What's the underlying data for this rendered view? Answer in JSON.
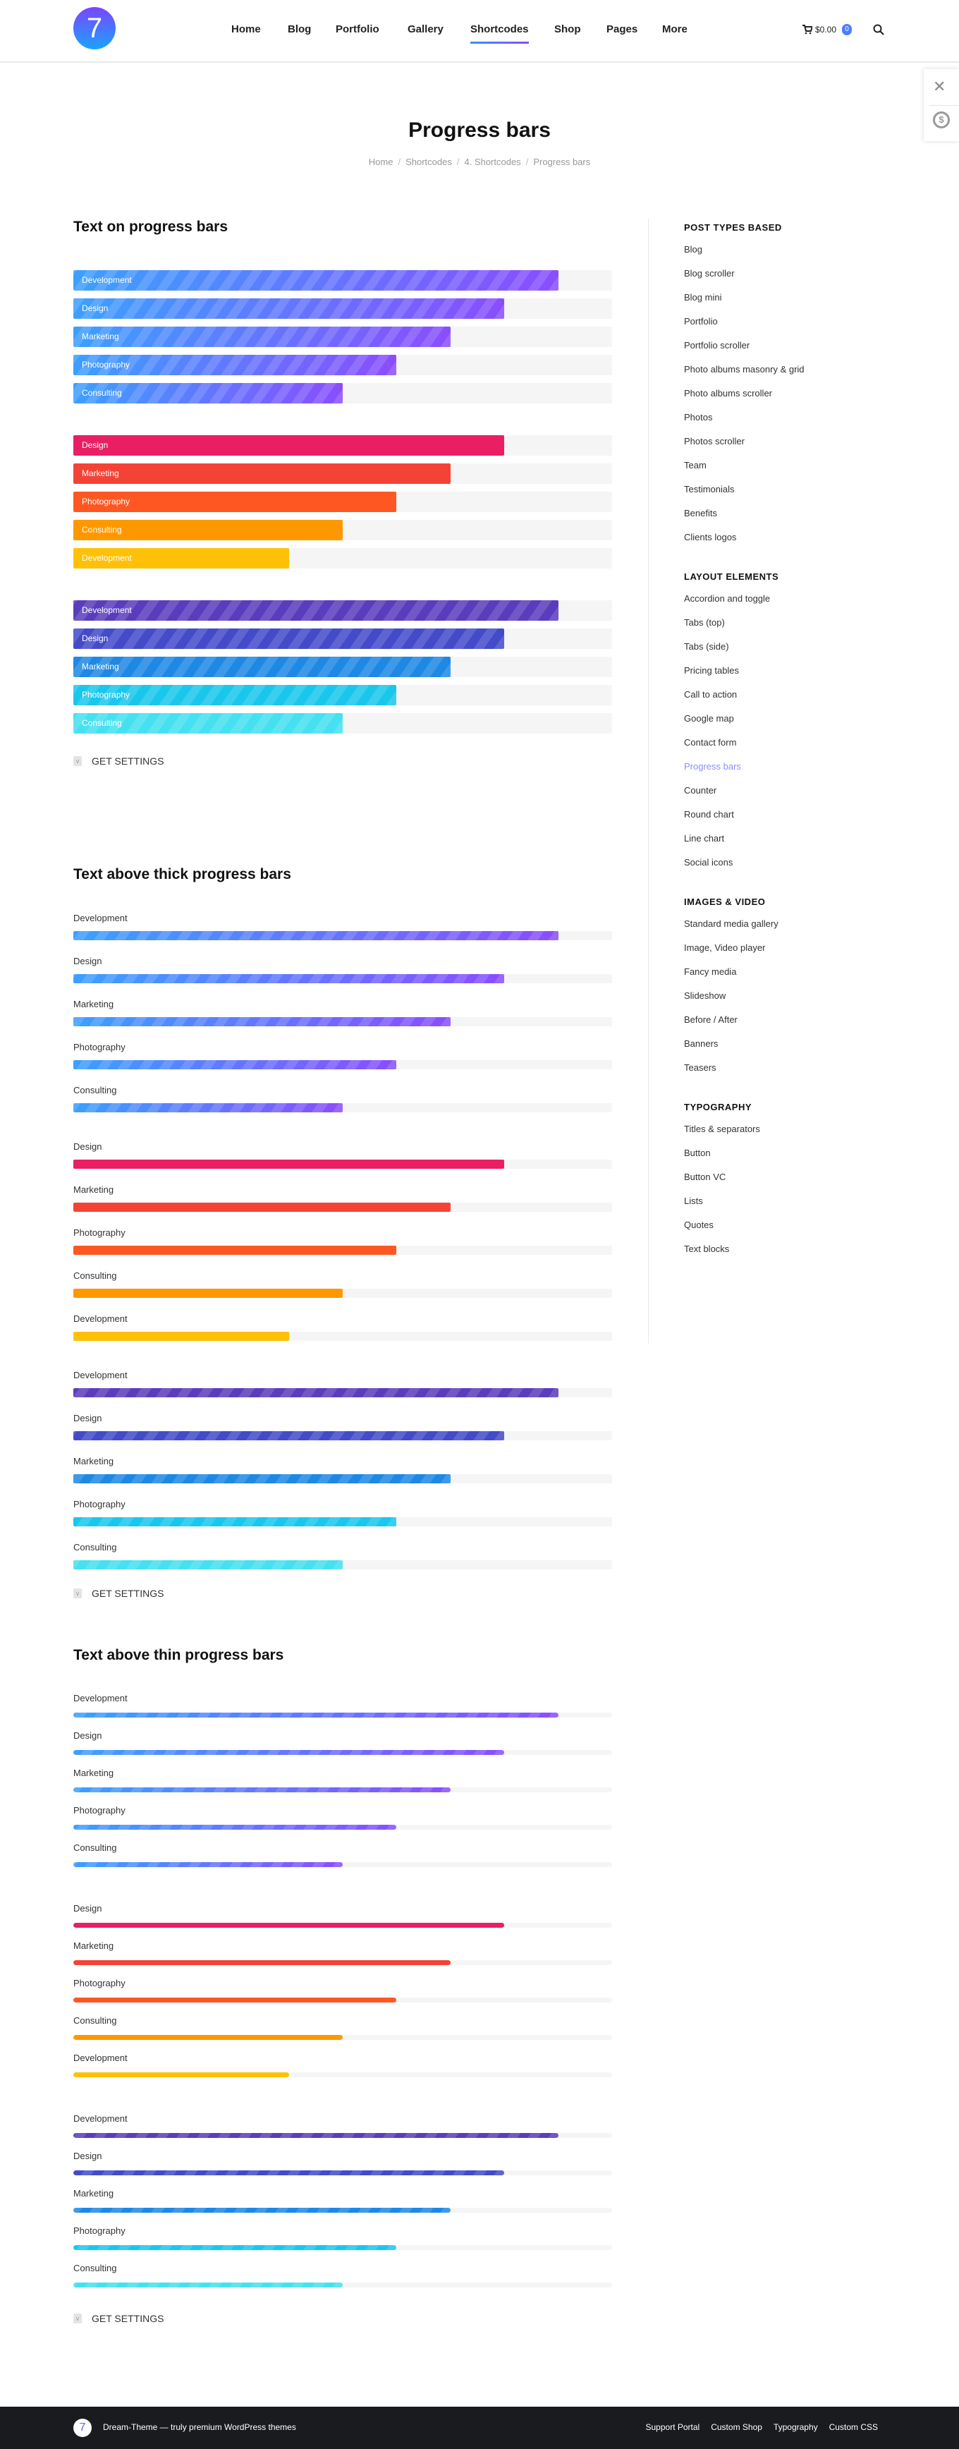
{
  "header": {
    "logo_text": "7",
    "nav": [
      "Home",
      "Blog",
      "Portfolio",
      "Gallery",
      "Shortcodes",
      "Shop",
      "Pages",
      "More"
    ],
    "active_nav": "Shortcodes",
    "cart_total": "$0.00",
    "cart_count": "0"
  },
  "page": {
    "title": "Progress bars",
    "breadcrumbs": [
      "Home",
      "Shortcodes",
      "4. Shortcodes",
      "Progress bars"
    ]
  },
  "floating_panel": {
    "icons": [
      "tools-icon",
      "dollar-coin-icon"
    ],
    "coin_glyph": "$"
  },
  "colors": {
    "gradient": [
      "#3ca0ff",
      "#8a4dff"
    ],
    "warm": [
      "#e91e63",
      "#f44336",
      "#ff5722",
      "#ff9800",
      "#ffc107"
    ],
    "cool": [
      "#5a3dbd",
      "#434bc9",
      "#1e88e5",
      "#1ac7ec",
      "#45e1f0"
    ],
    "track": "#f5f5f5"
  },
  "sections": [
    {
      "title": "Text on progress bars",
      "mode": "on",
      "settings_label": "GET SETTINGS",
      "groups": [
        {
          "scheme": "gradient",
          "striped": true,
          "items": [
            {
              "label": "Development",
              "value": 90
            },
            {
              "label": "Design",
              "value": 80
            },
            {
              "label": "Marketing",
              "value": 70
            },
            {
              "label": "Photography",
              "value": 60
            },
            {
              "label": "Consulting",
              "value": 50
            }
          ]
        },
        {
          "scheme": "warm",
          "striped": false,
          "items": [
            {
              "label": "Design",
              "value": 80
            },
            {
              "label": "Marketing",
              "value": 70
            },
            {
              "label": "Photography",
              "value": 60
            },
            {
              "label": "Consulting",
              "value": 50
            },
            {
              "label": "Development",
              "value": 40
            }
          ]
        },
        {
          "scheme": "cool",
          "striped": true,
          "items": [
            {
              "label": "Development",
              "value": 90
            },
            {
              "label": "Design",
              "value": 80
            },
            {
              "label": "Marketing",
              "value": 70
            },
            {
              "label": "Photography",
              "value": 60
            },
            {
              "label": "Consulting",
              "value": 50
            }
          ]
        }
      ]
    },
    {
      "title": "Text above thick progress bars",
      "mode": "thick",
      "settings_label": "GET SETTINGS",
      "groups": [
        {
          "scheme": "gradient",
          "striped": true,
          "items": [
            {
              "label": "Development",
              "value": 90
            },
            {
              "label": "Design",
              "value": 80
            },
            {
              "label": "Marketing",
              "value": 70
            },
            {
              "label": "Photography",
              "value": 60
            },
            {
              "label": "Consulting",
              "value": 50
            }
          ]
        },
        {
          "scheme": "warm",
          "striped": false,
          "items": [
            {
              "label": "Design",
              "value": 80
            },
            {
              "label": "Marketing",
              "value": 70
            },
            {
              "label": "Photography",
              "value": 60
            },
            {
              "label": "Consulting",
              "value": 50
            },
            {
              "label": "Development",
              "value": 40
            }
          ]
        },
        {
          "scheme": "cool",
          "striped": true,
          "items": [
            {
              "label": "Development",
              "value": 90
            },
            {
              "label": "Design",
              "value": 80
            },
            {
              "label": "Marketing",
              "value": 70
            },
            {
              "label": "Photography",
              "value": 60
            },
            {
              "label": "Consulting",
              "value": 50
            }
          ]
        }
      ]
    },
    {
      "title": "Text above thin progress bars",
      "mode": "thin",
      "settings_label": "GET SETTINGS",
      "groups": [
        {
          "scheme": "gradient",
          "striped": true,
          "items": [
            {
              "label": "Development",
              "value": 90
            },
            {
              "label": "Design",
              "value": 80
            },
            {
              "label": "Marketing",
              "value": 70
            },
            {
              "label": "Photography",
              "value": 60
            },
            {
              "label": "Consulting",
              "value": 50
            }
          ]
        },
        {
          "scheme": "warm",
          "striped": false,
          "items": [
            {
              "label": "Design",
              "value": 80
            },
            {
              "label": "Marketing",
              "value": 70
            },
            {
              "label": "Photography",
              "value": 60
            },
            {
              "label": "Consulting",
              "value": 50
            },
            {
              "label": "Development",
              "value": 40
            }
          ]
        },
        {
          "scheme": "cool",
          "striped": true,
          "items": [
            {
              "label": "Development",
              "value": 90
            },
            {
              "label": "Design",
              "value": 80
            },
            {
              "label": "Marketing",
              "value": 70
            },
            {
              "label": "Photography",
              "value": 60
            },
            {
              "label": "Consulting",
              "value": 50
            }
          ]
        }
      ]
    }
  ],
  "sidebar": [
    {
      "title": "POST TYPES BASED",
      "items": [
        "Blog",
        "Blog scroller",
        "Blog mini",
        "Portfolio",
        "Portfolio scroller",
        "Photo albums masonry & grid",
        "Photo albums scroller",
        "Photos",
        "Photos scroller",
        "Team",
        "Testimonials",
        "Benefits",
        "Clients logos"
      ]
    },
    {
      "title": "LAYOUT ELEMENTS",
      "items": [
        "Accordion and toggle",
        "Tabs (top)",
        "Tabs (side)",
        "Pricing tables",
        "Call to action",
        "Google map",
        "Contact form",
        "Progress bars",
        "Counter",
        "Round chart",
        "Line chart",
        "Social icons"
      ]
    },
    {
      "title": "IMAGES & VIDEO",
      "items": [
        "Standard media gallery",
        "Image, Video player",
        "Fancy media",
        "Slideshow",
        "Before / After",
        "Banners",
        "Teasers"
      ]
    },
    {
      "title": "TYPOGRAPHY",
      "items": [
        "Titles & separators",
        "Button",
        "Button VC",
        "Lists",
        "Quotes",
        "Text blocks"
      ]
    }
  ],
  "sidebar_current": "Progress bars",
  "footer": {
    "logo_text": "7",
    "text": "Dream-Theme — truly premium WordPress themes",
    "links": [
      "Support Portal",
      "Custom Shop",
      "Typography",
      "Custom CSS"
    ]
  }
}
